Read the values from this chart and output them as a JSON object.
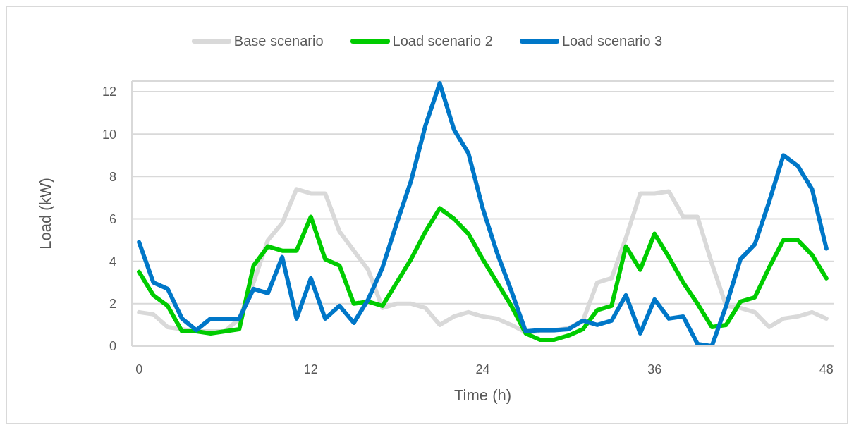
{
  "chart_data": {
    "type": "line",
    "xlabel": "Time (h)",
    "ylabel": "Load (kW)",
    "x": [
      0,
      1,
      2,
      3,
      4,
      5,
      6,
      7,
      8,
      9,
      10,
      11,
      12,
      13,
      14,
      15,
      16,
      17,
      18,
      19,
      20,
      21,
      22,
      23,
      24,
      25,
      26,
      27,
      28,
      29,
      30,
      31,
      32,
      33,
      34,
      35,
      36,
      37,
      38,
      39,
      40,
      41,
      42,
      43,
      44,
      45,
      46,
      47,
      48
    ],
    "series": [
      {
        "name": "Base scenario",
        "color": "#d9d9d9",
        "values": [
          1.6,
          1.5,
          0.9,
          0.8,
          0.7,
          0.7,
          0.7,
          1.3,
          3.0,
          5.0,
          5.8,
          7.4,
          7.2,
          7.2,
          5.4,
          4.5,
          3.6,
          1.8,
          2.0,
          2.0,
          1.8,
          1.0,
          1.4,
          1.6,
          1.4,
          1.3,
          1.0,
          0.65,
          0.7,
          0.75,
          0.85,
          1.2,
          3.0,
          3.2,
          5.1,
          7.2,
          7.2,
          7.3,
          6.1,
          6.1,
          3.9,
          1.9,
          1.8,
          1.6,
          0.9,
          1.3,
          1.4,
          1.6,
          1.3
        ]
      },
      {
        "name": "Load scenario 2",
        "color": "#00cc00",
        "values": [
          3.5,
          2.4,
          1.9,
          0.7,
          0.7,
          0.6,
          0.7,
          0.8,
          3.8,
          4.7,
          4.5,
          4.5,
          6.1,
          4.1,
          3.8,
          2.0,
          2.1,
          1.9,
          3.0,
          4.1,
          5.4,
          6.5,
          6.0,
          5.3,
          4.1,
          3.0,
          1.9,
          0.6,
          0.3,
          0.3,
          0.5,
          0.8,
          1.7,
          1.9,
          4.7,
          3.6,
          5.3,
          4.2,
          3.0,
          2.0,
          0.9,
          1.0,
          2.1,
          2.3,
          3.7,
          5.0,
          5.0,
          4.3,
          3.2
        ]
      },
      {
        "name": "Load scenario 3",
        "color": "#0077c8",
        "values": [
          4.9,
          3.0,
          2.7,
          1.3,
          0.75,
          1.3,
          1.3,
          1.3,
          2.7,
          2.5,
          4.2,
          1.3,
          3.2,
          1.3,
          1.9,
          1.1,
          2.2,
          3.7,
          5.8,
          7.8,
          10.4,
          12.4,
          10.2,
          9.1,
          6.5,
          4.4,
          2.6,
          0.7,
          0.75,
          0.75,
          0.8,
          1.2,
          1.0,
          1.2,
          2.4,
          0.6,
          2.2,
          1.3,
          1.4,
          0.1,
          0.0,
          1.9,
          4.1,
          4.8,
          6.8,
          9.0,
          8.5,
          7.4,
          4.6
        ]
      }
    ],
    "xlim": [
      -0.5,
      48.5
    ],
    "xticks": [
      0,
      12,
      24,
      36,
      48
    ],
    "ylim": [
      0,
      12.5
    ],
    "yticks": [
      0,
      2,
      4,
      6,
      8,
      10,
      12
    ],
    "grid": "y",
    "legend": "top"
  }
}
